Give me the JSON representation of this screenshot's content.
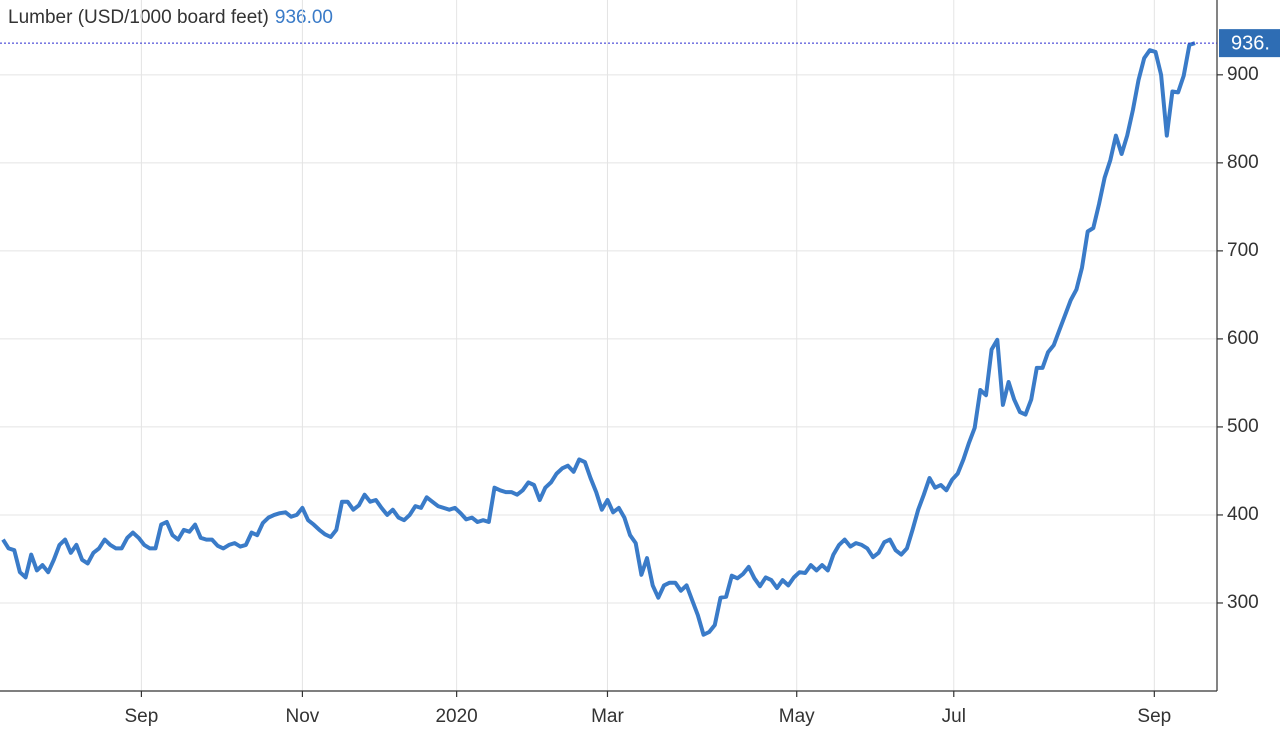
{
  "chart_data": {
    "type": "line",
    "title": "Lumber (USD/1000 board feet)",
    "last_value_label": "936.00",
    "badge_label": "936.",
    "series": [
      {
        "name": "Lumber",
        "color": "#3a7bc8",
        "values": [
          372,
          362,
          360,
          335,
          329,
          355,
          337,
          343,
          335,
          349,
          366,
          372,
          357,
          366,
          349,
          345,
          357,
          362,
          372,
          366,
          362,
          362,
          374,
          380,
          374,
          366,
          362,
          362,
          389,
          392,
          377,
          372,
          383,
          381,
          389,
          374,
          372,
          372,
          365,
          362,
          366,
          368,
          364,
          366,
          380,
          377,
          391,
          397,
          400,
          402,
          403,
          398,
          400,
          408,
          394,
          389,
          383,
          378,
          375,
          383,
          415,
          415,
          406,
          411,
          423,
          415,
          417,
          408,
          400,
          406,
          397,
          394,
          400,
          410,
          408,
          420,
          415,
          410,
          408,
          406,
          408,
          402,
          395,
          397,
          392,
          394,
          392,
          431,
          428,
          426,
          426,
          423,
          428,
          437,
          434,
          417,
          431,
          437,
          447,
          453,
          456,
          449,
          463,
          460,
          442,
          426,
          406,
          417,
          403,
          408,
          397,
          377,
          368,
          332,
          351,
          320,
          306,
          320,
          323,
          323,
          314,
          320,
          303,
          286,
          264,
          267,
          275,
          306,
          307,
          331,
          328,
          333,
          341,
          328,
          319,
          329,
          326,
          317,
          326,
          320,
          329,
          335,
          334,
          343,
          337,
          343,
          337,
          355,
          366,
          372,
          364,
          368,
          366,
          362,
          352,
          357,
          369,
          372,
          360,
          355,
          362,
          383,
          406,
          423,
          442,
          431,
          434,
          428,
          440,
          447,
          463,
          482,
          499,
          542,
          536,
          588,
          599,
          525,
          551,
          531,
          517,
          514,
          531,
          567,
          567,
          585,
          593,
          610,
          627,
          644,
          656,
          681,
          722,
          726,
          753,
          783,
          803,
          831,
          810,
          831,
          860,
          894,
          919,
          928,
          926,
          900,
          831,
          881,
          880,
          899,
          934,
          936
        ]
      }
    ],
    "xlim": [
      0,
      211
    ],
    "xticks": [
      {
        "value": 24.5,
        "label": "Sep"
      },
      {
        "value": 53,
        "label": "Nov"
      },
      {
        "value": 80.3,
        "label": "2020"
      },
      {
        "value": 107,
        "label": "Mar"
      },
      {
        "value": 140.5,
        "label": "May"
      },
      {
        "value": 168.3,
        "label": "Jul"
      },
      {
        "value": 203.8,
        "label": "Sep"
      }
    ],
    "ylim": [
      200,
      985
    ],
    "yticks": [
      300,
      400,
      500,
      600,
      700,
      800,
      900
    ],
    "grid": true
  }
}
